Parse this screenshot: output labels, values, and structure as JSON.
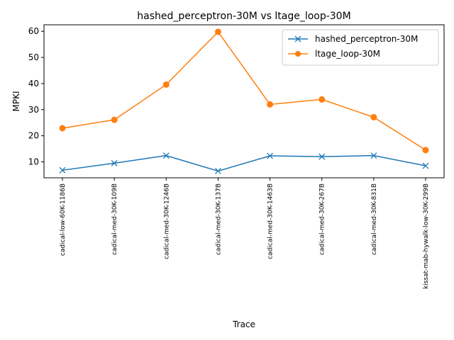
{
  "chart_data": {
    "type": "line",
    "title": "hashed_perceptron-30M vs ltage_loop-30M",
    "xlabel": "Trace",
    "ylabel": "MPKI",
    "categories": [
      "cadical-low-60K-1186B",
      "cadical-med-30K-109B",
      "cadical-med-30K-1246B",
      "cadical-med-30K-137B",
      "cadical-med-30K-1463B",
      "cadical-med-30K-267B",
      "cadical-med-30K-831B",
      "kissat-mab-hywalk-low-30K-299B"
    ],
    "series": [
      {
        "name": "hashed_perceptron-30M",
        "color": "#1f77b4",
        "marker": "x",
        "values": [
          6.8,
          9.5,
          12.4,
          6.5,
          12.3,
          12.0,
          12.4,
          8.5
        ]
      },
      {
        "name": "ltage_loop-30M",
        "color": "#ff7f0e",
        "marker": "o",
        "values": [
          22.9,
          26.1,
          39.6,
          59.8,
          32.0,
          33.9,
          27.1,
          14.5
        ]
      }
    ],
    "ylim": [
      3.9,
      62.5
    ],
    "yticks": [
      10,
      20,
      30,
      40,
      50,
      60
    ],
    "grid": false,
    "legend_position": "top-right"
  }
}
